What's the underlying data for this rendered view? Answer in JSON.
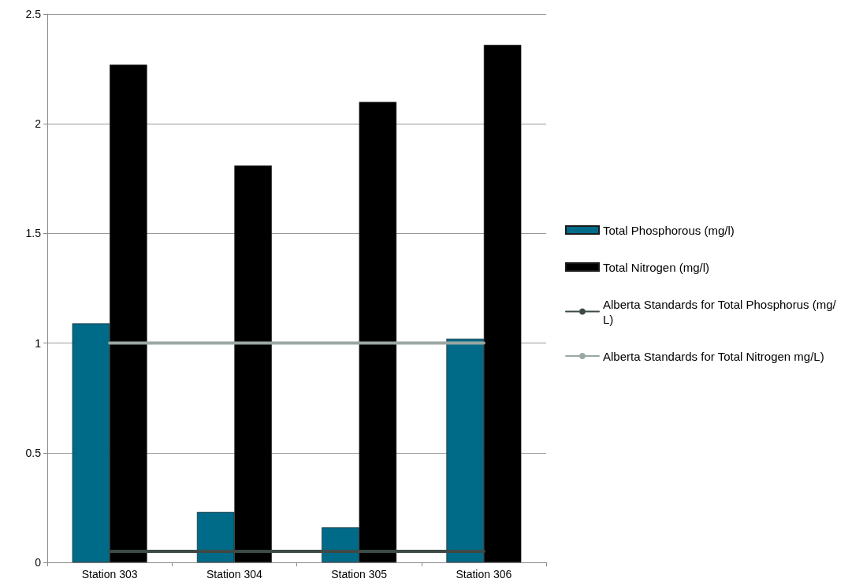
{
  "chart_data": {
    "type": "bar",
    "categories": [
      "Station 303",
      "Station 304",
      "Station 305",
      "Station 306"
    ],
    "series": [
      {
        "name": "Total Phosphorous (mg/l)",
        "color": "#006b89",
        "values": [
          1.09,
          0.23,
          0.16,
          1.02
        ]
      },
      {
        "name": "Total Nitrogen (mg/l)",
        "color": "#000000",
        "values": [
          2.27,
          1.81,
          2.1,
          2.36
        ]
      },
      {
        "name": "Alberta Standards for Total Phosphorus (mg/L)",
        "type": "line",
        "color": "#3d4a46",
        "values": [
          0.05,
          0.05,
          0.05,
          0.05
        ]
      },
      {
        "name": "Alberta Standards for Total Nitrogen mg/L)",
        "type": "line",
        "color": "#9aa8a2",
        "values": [
          1,
          1,
          1,
          1
        ]
      }
    ],
    "ylim": [
      0,
      2.5
    ],
    "yticks": [
      0,
      0.5,
      1,
      1.5,
      2,
      2.5
    ],
    "grid": "y",
    "legend": "right",
    "marker": "none",
    "line_style": "solid"
  }
}
